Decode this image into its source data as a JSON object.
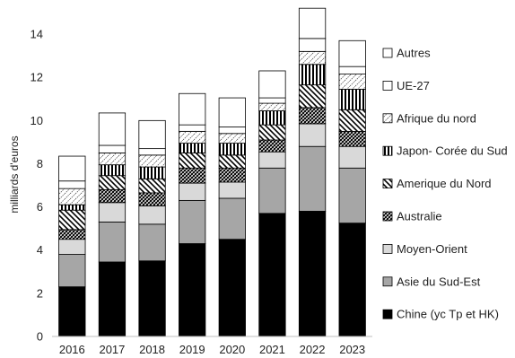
{
  "chart_data": {
    "type": "bar",
    "stacked": true,
    "title": "",
    "xlabel": "",
    "ylabel": "milliards d'euros",
    "ylim": [
      0,
      15
    ],
    "yticks": [
      0,
      2,
      4,
      6,
      8,
      10,
      12,
      14
    ],
    "grid": false,
    "legend_position": "right",
    "categories": [
      "2016",
      "2017",
      "2018",
      "2019",
      "2020",
      "2021",
      "2022",
      "2023"
    ],
    "series": [
      {
        "name": "Chine (yc Tp et HK)",
        "values": [
          2.3,
          3.45,
          3.5,
          4.3,
          4.5,
          5.7,
          5.8,
          5.25
        ]
      },
      {
        "name": "Asie du Sud-Est",
        "values": [
          1.5,
          1.85,
          1.7,
          2.0,
          1.9,
          2.1,
          3.0,
          2.55
        ]
      },
      {
        "name": "Moyen-Orient",
        "values": [
          0.7,
          0.9,
          0.85,
          0.8,
          0.75,
          0.75,
          1.05,
          1.0
        ]
      },
      {
        "name": "Australie",
        "values": [
          0.45,
          0.6,
          0.6,
          0.7,
          0.65,
          0.55,
          0.75,
          0.7
        ]
      },
      {
        "name": "Amerique du Nord",
        "values": [
          0.9,
          0.65,
          0.65,
          0.7,
          0.6,
          0.7,
          1.05,
          1.0
        ]
      },
      {
        "name": "Japon- Corée du Sud",
        "values": [
          0.25,
          0.5,
          0.55,
          0.45,
          0.55,
          0.65,
          0.95,
          0.95
        ]
      },
      {
        "name": "Afrique du nord",
        "values": [
          0.75,
          0.55,
          0.55,
          0.55,
          0.45,
          0.35,
          0.6,
          0.7
        ]
      },
      {
        "name": "UE-27",
        "values": [
          0.35,
          0.35,
          0.3,
          0.3,
          0.3,
          0.25,
          0.6,
          0.35
        ]
      },
      {
        "name": "Autres",
        "values": [
          1.15,
          1.5,
          1.3,
          1.45,
          1.35,
          1.25,
          1.4,
          1.2
        ]
      }
    ],
    "patterns": [
      "solid-black",
      "solid-gray",
      "solid-lightgray",
      "crosshatch",
      "diagonal-stripes",
      "vertical-stripes",
      "dotted-diagonal",
      "white-bordered",
      "white"
    ]
  }
}
